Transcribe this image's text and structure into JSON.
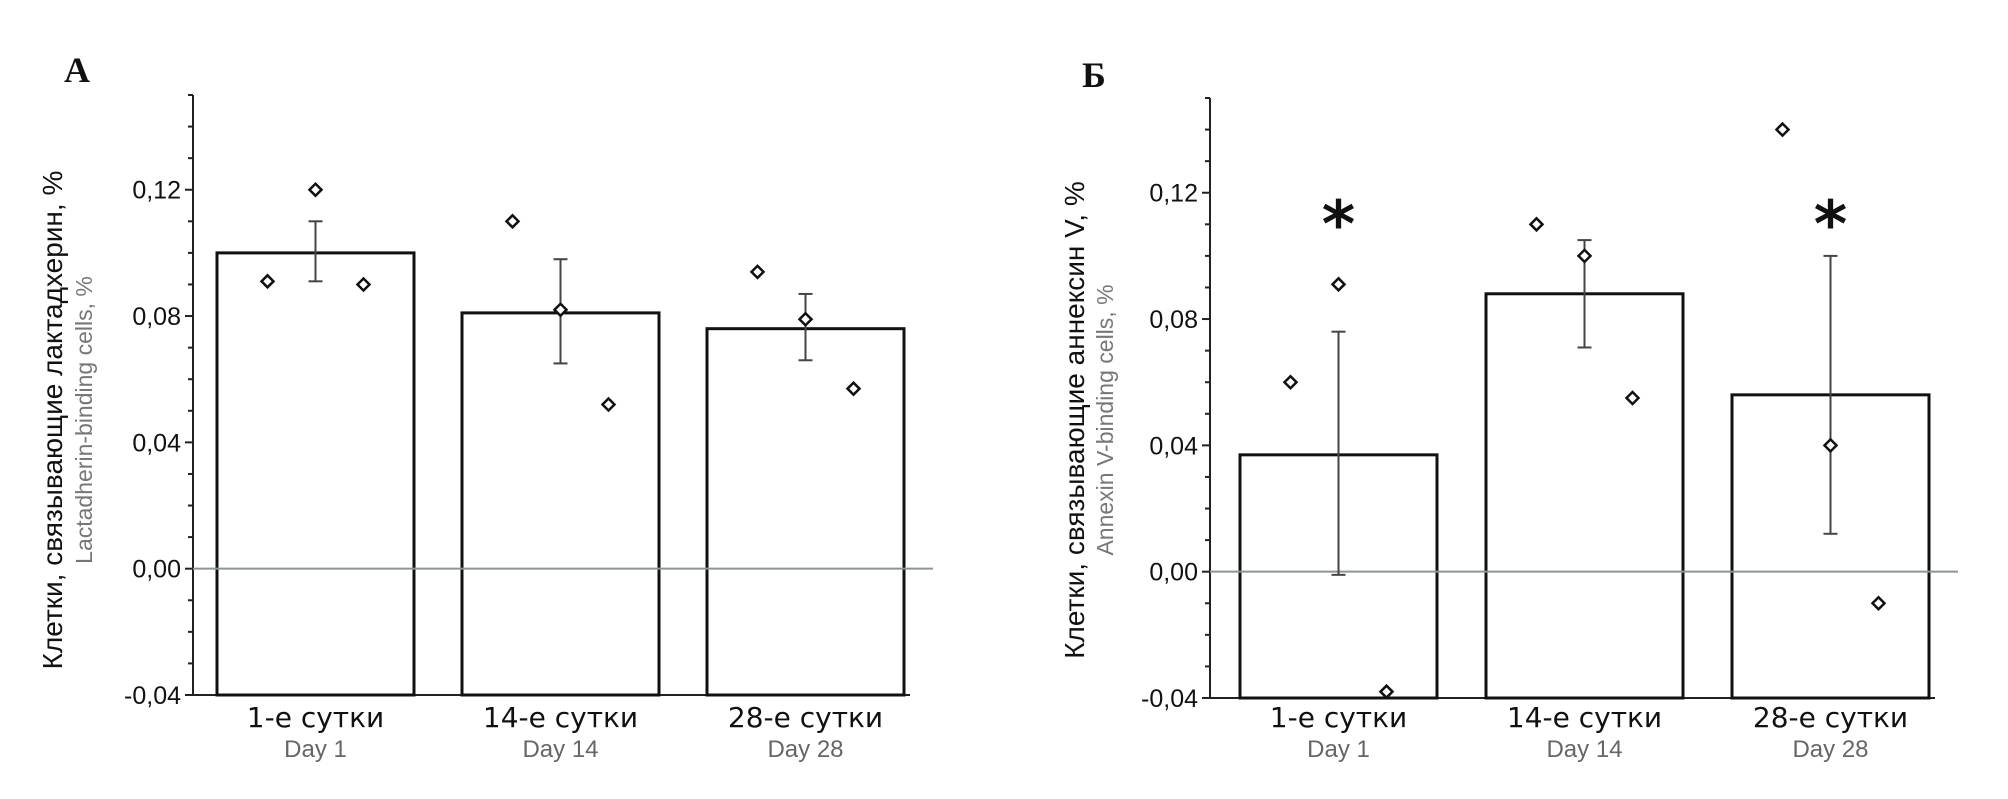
{
  "chart_data": [
    {
      "type": "bar",
      "panel_label": "А",
      "ylabel": "Клетки, связывающие лактадхерин, %",
      "ylabel_en": "Lactadherin-binding cells, %",
      "ylim": [
        -0.04,
        0.15
      ],
      "yticks": [
        -0.04,
        0.0,
        0.04,
        0.08,
        0.12
      ],
      "ytick_labels": [
        "-0,04",
        "0,00",
        "0,04",
        "0,08",
        "0,12"
      ],
      "categories": [
        "1-е сутки",
        "14-е сутки",
        "28-е сутки"
      ],
      "categories_en": [
        "Day 1",
        "Day 14",
        "Day 28"
      ],
      "values": [
        0.1,
        0.081,
        0.076
      ],
      "error_low": [
        0.091,
        0.065,
        0.066
      ],
      "error_high": [
        0.11,
        0.098,
        0.087
      ],
      "points": [
        [
          0.091,
          0.12,
          0.09
        ],
        [
          0.11,
          0.082,
          0.052
        ],
        [
          0.094,
          0.079,
          0.057
        ]
      ],
      "significance": [
        "",
        "",
        ""
      ]
    },
    {
      "type": "bar",
      "panel_label": "Б",
      "ylabel": "Клетки, связывающие аннексин V, %",
      "ylabel_en": "Annexin V-binding cells, %",
      "ylim": [
        -0.04,
        0.15
      ],
      "yticks": [
        -0.04,
        0.0,
        0.04,
        0.08,
        0.12
      ],
      "ytick_labels": [
        "-0,04",
        "0,00",
        "0,04",
        "0,08",
        "0,12"
      ],
      "categories": [
        "1-е сутки",
        "14-е сутки",
        "28-е сутки"
      ],
      "categories_en": [
        "Day 1",
        "Day 14",
        "Day 28"
      ],
      "values": [
        0.037,
        0.088,
        0.056
      ],
      "error_low": [
        -0.001,
        0.071,
        0.012
      ],
      "error_high": [
        0.076,
        0.105,
        0.1
      ],
      "points": [
        [
          0.06,
          0.091,
          -0.038
        ],
        [
          0.11,
          0.1,
          0.055
        ],
        [
          0.14,
          0.04,
          -0.01
        ]
      ],
      "significance": [
        "*",
        "",
        "*"
      ]
    }
  ]
}
